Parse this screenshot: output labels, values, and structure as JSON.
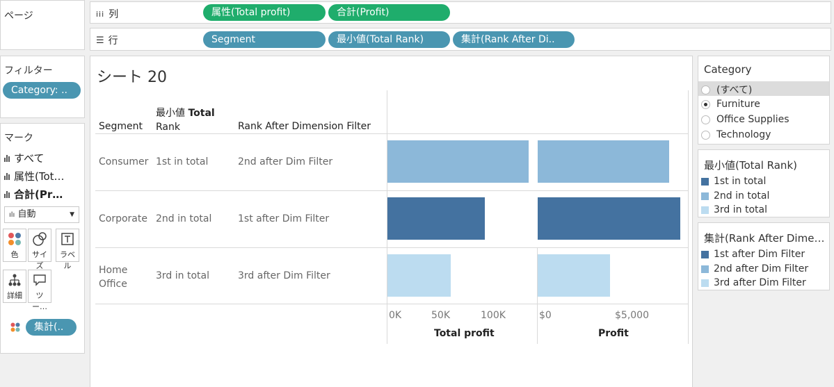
{
  "pages_label": "ページ",
  "columns_shelf": {
    "label": "列",
    "pills": [
      "属性(Total profit)",
      "合計(Profit)"
    ]
  },
  "rows_shelf": {
    "label": "行",
    "pills": [
      "Segment",
      "最小値(Total Rank)",
      "集計(Rank After Di.."
    ]
  },
  "filters": {
    "title": "フィルター",
    "pill": "Category: .."
  },
  "marks": {
    "title": "マーク",
    "items": [
      "すべて",
      "属性(Tot…",
      "合計(Pr…"
    ],
    "mark_type": "自動",
    "buttons": [
      "色",
      "サイズ",
      "ラベル",
      "詳細",
      "ツー…"
    ],
    "color_pill": "集計(.."
  },
  "sheet": {
    "title": "シート 20",
    "headers": {
      "segment": "Segment",
      "total_rank_line1": "最小値",
      "total_rank_bold": "Total",
      "total_rank_line2": "Rank",
      "rank_after": "Rank After Dimension Filter"
    },
    "rows": [
      {
        "segment": "Consumer",
        "segment2": "",
        "total_rank": "1st in total",
        "rank_after": "2nd after Dim Filter"
      },
      {
        "segment": "Corporate",
        "segment2": "",
        "total_rank": "2nd in total",
        "rank_after": "1st after Dim Filter"
      },
      {
        "segment": "Home",
        "segment2": "Office",
        "total_rank": "3rd in total",
        "rank_after": "3rd after Dim Filter"
      }
    ],
    "axes": {
      "total_profit": {
        "title": "Total profit",
        "ticks": [
          "0K",
          "50K",
          "100K"
        ]
      },
      "profit": {
        "title": "Profit",
        "ticks": [
          "$0",
          "$5,000"
        ]
      }
    }
  },
  "chart_data": {
    "type": "bar",
    "orientation": "horizontal",
    "categories": [
      "Consumer",
      "Corporate",
      "Home Office"
    ],
    "series": [
      {
        "name": "Total profit",
        "values": [
          134000,
          92000,
          60000
        ],
        "xlim": [
          0,
          135000
        ]
      },
      {
        "name": "Profit",
        "values": [
          6900,
          7500,
          3800
        ],
        "xlim": [
          0,
          7500
        ]
      }
    ],
    "color_rank": [
      2,
      1,
      3
    ]
  },
  "category_filter": {
    "title": "Category",
    "options": [
      "(すべて)",
      "Furniture",
      "Office Supplies",
      "Technology"
    ],
    "selected": "Furniture"
  },
  "legend_total_rank": {
    "title": "最小値(Total Rank)",
    "items": [
      "1st in total",
      "2nd in total",
      "3rd in total"
    ]
  },
  "legend_rank_after": {
    "title": "集計(Rank After Dime…",
    "items": [
      "1st after Dim Filter",
      "2nd after Dim Filter",
      "3rd after Dim Filter"
    ]
  },
  "colors": {
    "rank1": "#4472a0",
    "rank2": "#8cb8d9",
    "rank3": "#bcdcf0",
    "pill_green": "#1fad6c",
    "pill_blue": "#4a96b1"
  }
}
